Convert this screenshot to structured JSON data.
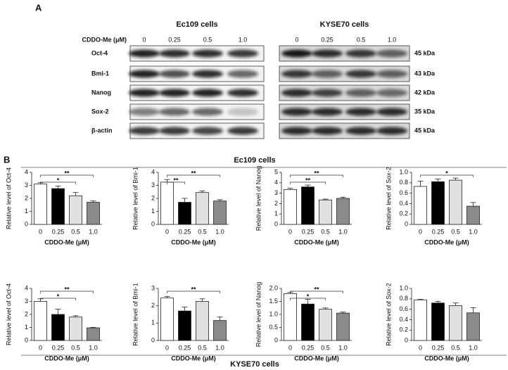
{
  "panel_a": {
    "label": "A",
    "dose_label": "CDDO-Me (μM)",
    "groups": [
      {
        "title": "Ec109 cells",
        "doses": [
          "0",
          "0.25",
          "0.5",
          "1.0"
        ]
      },
      {
        "title": "KYSE70 cells",
        "doses": [
          "0",
          "0.25",
          "0.5",
          "1.0"
        ]
      }
    ],
    "rows": [
      {
        "protein": "Oct-4",
        "size": "45 kDa"
      },
      {
        "protein": "Bmi-1",
        "size": "43 kDa"
      },
      {
        "protein": "Nanog",
        "size": "42 kDa"
      },
      {
        "protein": "Sox-2",
        "size": "35 kDa"
      },
      {
        "protein": "β-actin",
        "size": "45 kDa"
      }
    ]
  },
  "panel_b": {
    "label": "B",
    "top_title": "Ec109 cells",
    "bottom_title": "KYSE70 cells"
  },
  "chart_data": [
    {
      "type": "bar",
      "ylabel": "Relative level of Oct-4",
      "xlabel": "CDDO-Me (μM)",
      "categories": [
        "0",
        "0.25",
        "0.5",
        "1.0"
      ],
      "values": [
        3.1,
        2.75,
        2.2,
        1.7
      ],
      "errors": [
        0.1,
        0.2,
        0.25,
        0.1
      ],
      "colors": [
        "#ffffff",
        "#000000",
        "#e0e0e0",
        "#8a8a8a"
      ],
      "ylim": [
        0,
        4
      ],
      "yticks": [
        0,
        1,
        2,
        3,
        4
      ],
      "annotations": [
        {
          "label": "**",
          "span": [
            "0",
            "1.0"
          ]
        },
        {
          "label": "*",
          "span": [
            "0",
            "0.5"
          ]
        }
      ]
    },
    {
      "type": "bar",
      "ylabel": "Relative level of Bmi-1",
      "xlabel": "CDDO-Me (μM)",
      "categories": [
        "0",
        "0.25",
        "0.5",
        "1.0"
      ],
      "values": [
        3.25,
        1.7,
        2.45,
        1.8
      ],
      "errors": [
        0.2,
        0.3,
        0.12,
        0.1
      ],
      "colors": [
        "#ffffff",
        "#000000",
        "#e0e0e0",
        "#8a8a8a"
      ],
      "ylim": [
        0,
        4
      ],
      "yticks": [
        0,
        1,
        2,
        3,
        4
      ],
      "annotations": [
        {
          "label": "**",
          "span": [
            "0",
            "1.0"
          ]
        },
        {
          "label": "**",
          "span": [
            "0",
            "0.25"
          ]
        }
      ]
    },
    {
      "type": "bar",
      "ylabel": "Relative level of Nanog",
      "xlabel": "CDDO-Me (μM)",
      "categories": [
        "0",
        "0.25",
        "0.5",
        "1.0"
      ],
      "values": [
        3.35,
        3.6,
        2.35,
        2.5
      ],
      "errors": [
        0.12,
        0.18,
        0.08,
        0.12
      ],
      "colors": [
        "#ffffff",
        "#000000",
        "#e0e0e0",
        "#8a8a8a"
      ],
      "ylim": [
        0,
        5
      ],
      "yticks": [
        0,
        1,
        2,
        3,
        4,
        5
      ],
      "annotations": [
        {
          "label": "**",
          "span": [
            "0",
            "1.0"
          ]
        },
        {
          "label": "**",
          "span": [
            "0",
            "0.5"
          ]
        }
      ]
    },
    {
      "type": "bar",
      "ylabel": "Relative level of Sox-2",
      "xlabel": "CDDO-Me (μM)",
      "categories": [
        "0",
        "0.25",
        "0.5",
        "1.0"
      ],
      "values": [
        0.73,
        0.82,
        0.85,
        0.35
      ],
      "errors": [
        0.1,
        0.05,
        0.04,
        0.07
      ],
      "colors": [
        "#ffffff",
        "#000000",
        "#e0e0e0",
        "#8a8a8a"
      ],
      "ylim": [
        0,
        1
      ],
      "yticks": [
        0,
        0.2,
        0.4,
        0.6,
        0.8,
        {
          "value": 1,
          "label": "1.0"
        }
      ],
      "annotations": [
        {
          "label": "*",
          "span": [
            "0",
            "1.0"
          ]
        }
      ]
    },
    {
      "type": "bar",
      "ylabel": "Relative level of Oct-4",
      "xlabel": "CDDO-Me (μM)",
      "categories": [
        "0",
        "0.25",
        "0.5",
        "1.0"
      ],
      "values": [
        3.0,
        2.0,
        1.8,
        0.97
      ],
      "errors": [
        0.2,
        0.4,
        0.1,
        0.04
      ],
      "colors": [
        "#ffffff",
        "#000000",
        "#e0e0e0",
        "#8a8a8a"
      ],
      "ylim": [
        0,
        4
      ],
      "yticks": [
        0,
        1,
        2,
        3,
        4
      ],
      "annotations": [
        {
          "label": "**",
          "span": [
            "0",
            "1.0"
          ]
        },
        {
          "label": "*",
          "span": [
            "0",
            "0.5"
          ]
        }
      ]
    },
    {
      "type": "bar",
      "ylabel": "Relative level of Bmi-1",
      "xlabel": "CDDO-Me (μM)",
      "categories": [
        "0",
        "0.25",
        "0.5",
        "1.0"
      ],
      "values": [
        2.45,
        1.7,
        2.25,
        1.15
      ],
      "errors": [
        0.08,
        0.22,
        0.15,
        0.2
      ],
      "colors": [
        "#ffffff",
        "#000000",
        "#e0e0e0",
        "#8a8a8a"
      ],
      "ylim": [
        0,
        3
      ],
      "yticks": [
        0,
        1,
        2,
        3
      ],
      "annotations": [
        {
          "label": "**",
          "span": [
            "0",
            "1.0"
          ]
        }
      ]
    },
    {
      "type": "bar",
      "ylabel": "Relative level of Nanog",
      "xlabel": "CDDO-Me (μM)",
      "categories": [
        "0",
        "0.25",
        "0.5",
        "1.0"
      ],
      "values": [
        1.8,
        1.4,
        1.2,
        1.05
      ],
      "errors": [
        0.05,
        0.18,
        0.05,
        0.04
      ],
      "colors": [
        "#ffffff",
        "#000000",
        "#e0e0e0",
        "#8a8a8a"
      ],
      "ylim": [
        0,
        2
      ],
      "yticks": [
        0,
        0.5,
        {
          "value": 1,
          "label": "1.0"
        },
        1.5,
        {
          "value": 2,
          "label": "2.0"
        }
      ],
      "annotations": [
        {
          "label": "**",
          "span": [
            "0",
            "1.0"
          ]
        },
        {
          "label": "*",
          "span": [
            "0",
            "0.5"
          ]
        }
      ]
    },
    {
      "type": "bar",
      "ylabel": "Relative level of Sox-2",
      "xlabel": "CDDO-Me (μM)",
      "categories": [
        "0",
        "0.25",
        "0.5",
        "1.0"
      ],
      "values": [
        0.78,
        0.72,
        0.67,
        0.53
      ],
      "errors": [
        0.01,
        0.03,
        0.05,
        0.1
      ],
      "colors": [
        "#ffffff",
        "#000000",
        "#e0e0e0",
        "#8a8a8a"
      ],
      "ylim": [
        0,
        1
      ],
      "yticks": [
        0,
        0.2,
        0.4,
        0.6,
        0.8,
        {
          "value": 1,
          "label": "1.0"
        }
      ]
    }
  ]
}
